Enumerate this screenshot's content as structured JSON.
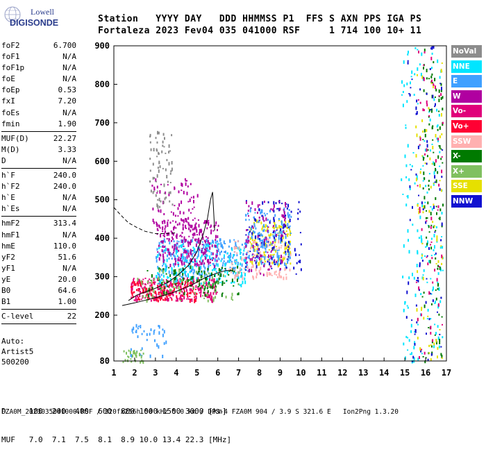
{
  "logo": {
    "line1": "Lowell",
    "line2": "DIGISONDE"
  },
  "header": {
    "line1": "Station   YYYY DAY   DDD HHMMSS P1  FFS S AXN PPS IGA PS",
    "line2": "Fortaleza 2023 Fev04 035 041000 RSF     1 714 100 10+ 11"
  },
  "params": {
    "group1": [
      {
        "label": "foF2",
        "value": "6.700"
      },
      {
        "label": "foF1",
        "value": "N/A"
      },
      {
        "label": "foF1p",
        "value": "N/A"
      },
      {
        "label": "foE",
        "value": "N/A"
      },
      {
        "label": "foEp",
        "value": "0.53"
      },
      {
        "label": "fxI",
        "value": "7.20"
      },
      {
        "label": "foEs",
        "value": "N/A"
      },
      {
        "label": "fmin",
        "value": "1.90"
      }
    ],
    "group2": [
      {
        "label": "MUF(D)",
        "value": "22.27"
      },
      {
        "label": "M(D)",
        "value": "3.33"
      },
      {
        "label": "D",
        "value": "N/A"
      }
    ],
    "group3": [
      {
        "label": "h`F",
        "value": "240.0"
      },
      {
        "label": "h`F2",
        "value": "240.0"
      },
      {
        "label": "h`E",
        "value": "N/A"
      },
      {
        "label": "h`Es",
        "value": "N/A"
      }
    ],
    "group4": [
      {
        "label": "hmF2",
        "value": "313.4"
      },
      {
        "label": "hmF1",
        "value": "N/A"
      },
      {
        "label": "hmE",
        "value": "110.0"
      },
      {
        "label": "yF2",
        "value": "51.6"
      },
      {
        "label": "yF1",
        "value": "N/A"
      },
      {
        "label": "yE",
        "value": "20.0"
      },
      {
        "label": "B0",
        "value": "64.6"
      },
      {
        "label": "B1",
        "value": "1.00"
      }
    ],
    "group5": [
      {
        "label": "C-level",
        "value": "22"
      }
    ]
  },
  "auto": {
    "line1": "Auto:",
    "line2": "Artist5",
    "line3": "500200"
  },
  "legend": [
    {
      "label": "NoVal",
      "color": "#8c8c8c"
    },
    {
      "label": "NNE",
      "color": "#00e5ff"
    },
    {
      "label": "E",
      "color": "#3fa0ff"
    },
    {
      "label": "W",
      "color": "#b000a0"
    },
    {
      "label": "Vo-",
      "color": "#e0007a"
    },
    {
      "label": "Vo+",
      "color": "#ff0033"
    },
    {
      "label": "SSW",
      "color": "#ffb0b0"
    },
    {
      "label": "X-",
      "color": "#007a00"
    },
    {
      "label": "X+",
      "color": "#80c060"
    },
    {
      "label": "SSE",
      "color": "#e6e000"
    },
    {
      "label": "NNW",
      "color": "#1010d0"
    }
  ],
  "footer": {
    "line1": "D     100  200  400  600  800 1000 1500 3000 [km]",
    "line2": "MUF   7.0  7.1  7.5  8.1  8.9 10.0 13.4 22.3 [MHz]",
    "line3": "FZA0M_2023035041000.RSF / 320fx256h 50 kHz 5.0 km / DPS-4 FZA0M 904 / 3.9 S 321.6 E   Ion2Png 1.3.20"
  },
  "chart_data": {
    "type": "scatter",
    "xlim": [
      1,
      17
    ],
    "ylim": [
      80,
      900
    ],
    "xticks": [
      1,
      2,
      3,
      4,
      5,
      6,
      7,
      8,
      9,
      10,
      11,
      12,
      13,
      14,
      15,
      16,
      17
    ],
    "yticks": [
      80,
      200,
      300,
      400,
      500,
      600,
      700,
      800,
      900
    ],
    "grid": false,
    "traces": [
      {
        "name": "profile-solid",
        "points": [
          [
            1.4,
            225
          ],
          [
            2.0,
            232
          ],
          [
            2.6,
            240
          ],
          [
            3.2,
            248
          ],
          [
            3.8,
            258
          ],
          [
            4.3,
            268
          ],
          [
            4.8,
            280
          ],
          [
            5.2,
            292
          ],
          [
            5.5,
            300
          ],
          [
            6.0,
            310
          ],
          [
            6.4,
            316
          ],
          [
            6.7,
            316
          ]
        ]
      },
      {
        "name": "profile-solid-upper",
        "points": [
          [
            1.7,
            238
          ],
          [
            2.1,
            252
          ],
          [
            2.6,
            262
          ],
          [
            3.1,
            272
          ],
          [
            3.6,
            285
          ],
          [
            4.1,
            305
          ],
          [
            4.6,
            330
          ],
          [
            5.0,
            365
          ],
          [
            5.3,
            410
          ],
          [
            5.5,
            450
          ],
          [
            5.65,
            500
          ],
          [
            5.75,
            520
          ],
          [
            5.8,
            470
          ],
          [
            5.85,
            420
          ]
        ]
      },
      {
        "name": "profile-dashed",
        "points": [
          [
            1.0,
            480
          ],
          [
            1.3,
            462
          ],
          [
            1.7,
            440
          ],
          [
            2.1,
            428
          ],
          [
            2.5,
            418
          ],
          [
            3.0,
            412
          ],
          [
            3.5,
            412
          ],
          [
            4.0,
            414
          ]
        ]
      }
    ],
    "clusters": [
      {
        "color": "#e0007a",
        "x": [
          1.8,
          6.0
        ],
        "y": [
          240,
          300
        ],
        "n": 260
      },
      {
        "color": "#ff0033",
        "x": [
          1.8,
          5.0
        ],
        "y": [
          240,
          290
        ],
        "n": 120
      },
      {
        "color": "#3fa0ff",
        "x": [
          3.0,
          7.5
        ],
        "y": [
          300,
          400
        ],
        "n": 280
      },
      {
        "color": "#00e5ff",
        "x": [
          3.0,
          7.3
        ],
        "y": [
          280,
          390
        ],
        "n": 160
      },
      {
        "color": "#b000a0",
        "x": [
          3.0,
          6.0
        ],
        "y": [
          330,
          450
        ],
        "n": 230
      },
      {
        "color": "#b000a0",
        "x": [
          2.8,
          5.0
        ],
        "y": [
          410,
          560
        ],
        "n": 80
      },
      {
        "color": "#007a00",
        "x": [
          2.5,
          7.0
        ],
        "y": [
          255,
          330
        ],
        "n": 110
      },
      {
        "color": "#80c060",
        "x": [
          2.0,
          7.0
        ],
        "y": [
          240,
          320
        ],
        "n": 70
      },
      {
        "color": "#ffb0b0",
        "x": [
          6.5,
          9.5
        ],
        "y": [
          300,
          400
        ],
        "n": 120
      },
      {
        "color": "#e6e000",
        "x": [
          7.5,
          9.5
        ],
        "y": [
          330,
          450
        ],
        "n": 140
      },
      {
        "color": "#3fa0ff",
        "x": [
          7.3,
          9.5
        ],
        "y": [
          330,
          480
        ],
        "n": 170
      },
      {
        "color": "#1010d0",
        "x": [
          7.3,
          10.0
        ],
        "y": [
          300,
          500
        ],
        "n": 100
      },
      {
        "color": "#b000a0",
        "x": [
          7.3,
          9.3
        ],
        "y": [
          300,
          500
        ],
        "n": 90
      },
      {
        "color": "#8c8c8c",
        "x": [
          2.7,
          3.8
        ],
        "y": [
          480,
          680
        ],
        "n": 70
      },
      {
        "color": "#00e5ff",
        "x": [
          14.8,
          16.8
        ],
        "y": [
          80,
          900
        ],
        "n": 180
      },
      {
        "color": "#007a00",
        "x": [
          15.8,
          16.8
        ],
        "y": [
          80,
          900
        ],
        "n": 120
      },
      {
        "color": "#1010d0",
        "x": [
          15.0,
          16.8
        ],
        "y": [
          80,
          900
        ],
        "n": 80
      },
      {
        "color": "#e6e000",
        "x": [
          15.5,
          16.8
        ],
        "y": [
          80,
          900
        ],
        "n": 70
      },
      {
        "color": "#e0007a",
        "x": [
          15.5,
          16.8
        ],
        "y": [
          80,
          900
        ],
        "n": 60
      },
      {
        "color": "#3fa0ff",
        "x": [
          1.7,
          3.5
        ],
        "y": [
          90,
          180
        ],
        "n": 40
      },
      {
        "color": "#80c060",
        "x": [
          1.4,
          2.4
        ],
        "y": [
          80,
          110
        ],
        "n": 30
      }
    ]
  }
}
